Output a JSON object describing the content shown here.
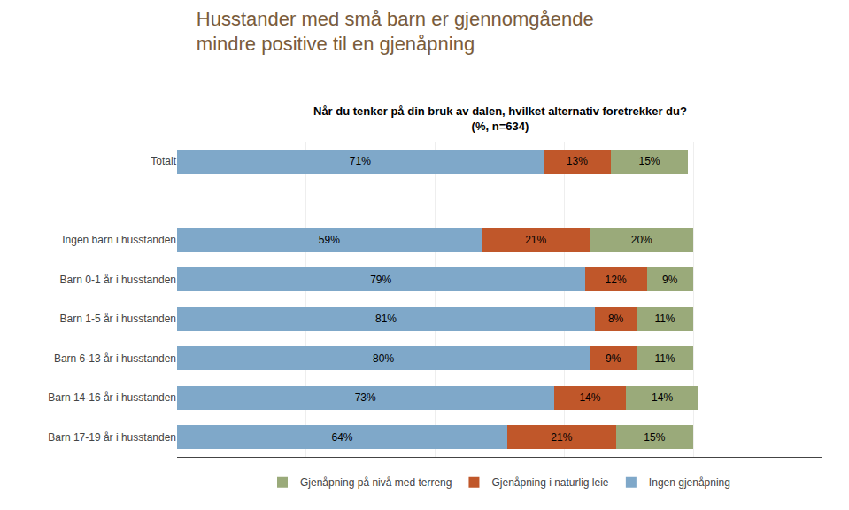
{
  "chart_data": {
    "type": "bar",
    "orientation": "horizontal",
    "stacked": true,
    "title": "Husstander med små barn er gjennomgående\nmindre positive til en gjenåpning",
    "subtitle": "Når du tenker på din bruk av dalen, hvilket alternativ foretrekker du?\n(%, n=634)",
    "categories": [
      "Totalt",
      null,
      "Ingen barn i husstanden",
      "Barn 0-1 år i husstanden",
      "Barn 1-5 år i husstanden",
      "Barn 6-13 år i husstanden",
      "Barn 14-16 år i husstanden",
      "Barn 17-19 år i husstanden"
    ],
    "series": [
      {
        "name": "Ingen gjenåpning",
        "color": "#7fa8c9",
        "values": [
          71,
          null,
          59,
          79,
          81,
          80,
          73,
          64
        ],
        "value_labels": [
          "71%",
          null,
          "59%",
          "79%",
          "81%",
          "80%",
          "73%",
          "64%"
        ]
      },
      {
        "name": "Gjenåpning i naturlig leie",
        "color": "#c0572a",
        "values": [
          13,
          null,
          21,
          12,
          8,
          9,
          14,
          21
        ],
        "value_labels": [
          "13%",
          null,
          "21%",
          "12%",
          "8%",
          "9%",
          "14%",
          "21%"
        ]
      },
      {
        "name": "Gjenåpning på nivå med terreng",
        "color": "#9aaa7a",
        "values": [
          15,
          null,
          20,
          9,
          11,
          11,
          14,
          15
        ],
        "value_labels": [
          "15%",
          null,
          "20%",
          "9%",
          "11%",
          "11%",
          "14%",
          "15%"
        ]
      }
    ],
    "xlim": [
      0,
      125
    ],
    "xticks": [
      0,
      25,
      50,
      75,
      100,
      125
    ],
    "grid": true,
    "tick_labels": "y",
    "data_labels": true,
    "legend": "bottom"
  }
}
